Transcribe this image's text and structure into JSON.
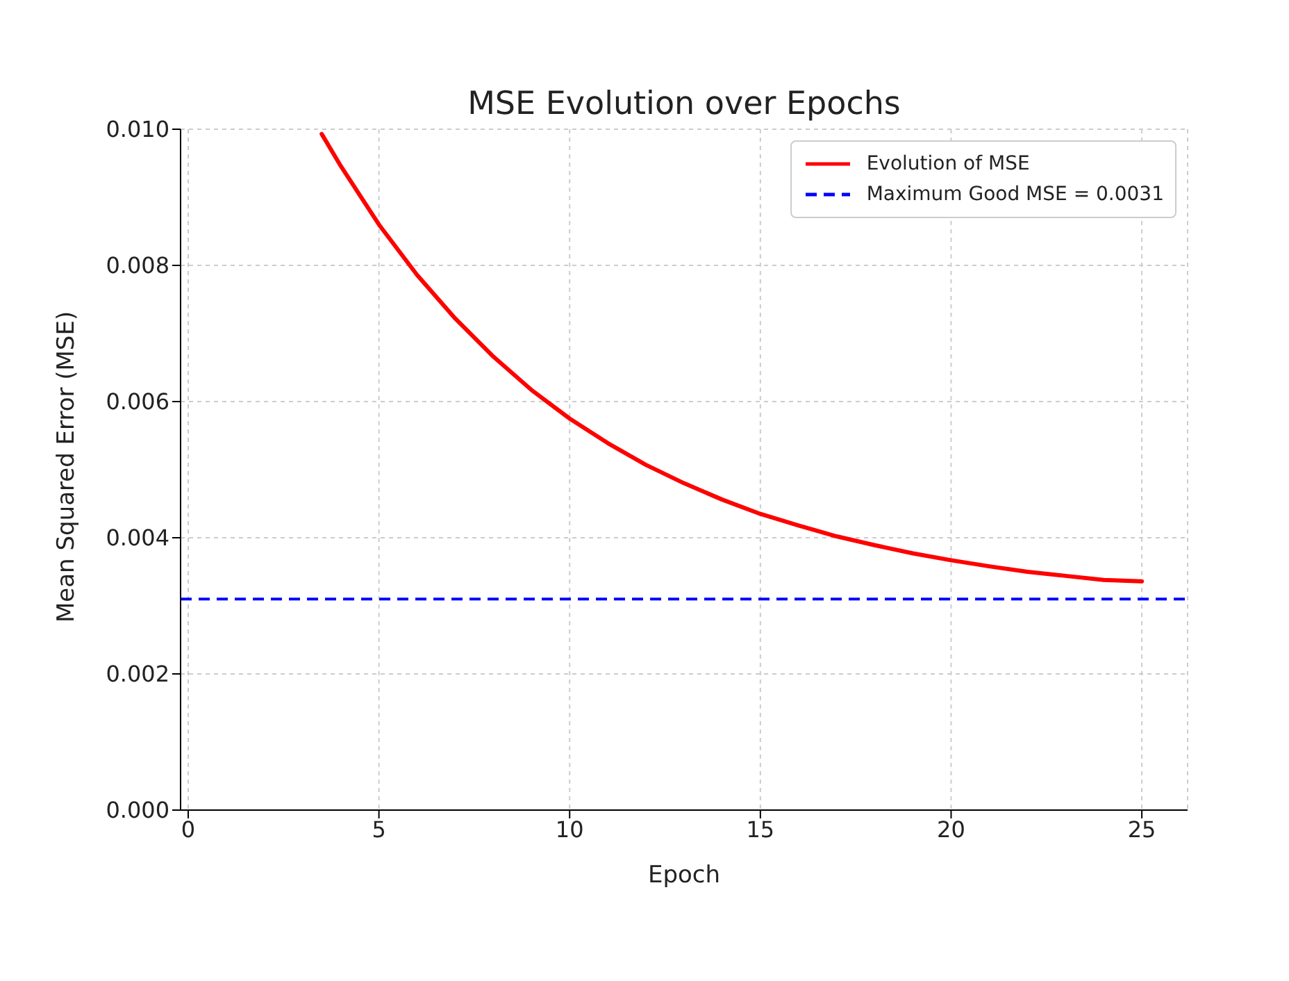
{
  "chart_data": {
    "type": "line",
    "title": "MSE Evolution over Epochs",
    "xlabel": "Epoch",
    "ylabel": "Mean Squared Error (MSE)",
    "x": [
      3.5,
      4,
      5,
      6,
      7,
      8,
      9,
      10,
      11,
      12,
      13,
      14,
      15,
      16,
      17,
      18,
      19,
      20,
      21,
      22,
      23,
      24,
      25
    ],
    "series": [
      {
        "name": "Evolution of MSE",
        "color": "#ff0000",
        "values": [
          0.00993,
          0.00946,
          0.0086,
          0.00786,
          0.00722,
          0.00666,
          0.00617,
          0.00575,
          0.00539,
          0.00507,
          0.0048,
          0.00456,
          0.00435,
          0.00418,
          0.00402,
          0.00389,
          0.00377,
          0.00367,
          0.00358,
          0.0035,
          0.00344,
          0.00338,
          0.00336
        ]
      }
    ],
    "ref_lines": [
      {
        "axis": "y",
        "value": 0.0031,
        "label": "Maximum Good MSE = 0.0031",
        "color": "#0000ff",
        "line_style": "dashed"
      }
    ],
    "xlim": [
      -0.2,
      26.2
    ],
    "xticks": [
      0,
      5,
      10,
      15,
      20,
      25
    ],
    "ylim": [
      0,
      0.01
    ],
    "yticks": [
      {
        "value": 0,
        "label": "0.000"
      },
      {
        "value": 0.002,
        "label": "0.002"
      },
      {
        "value": 0.004,
        "label": "0.004"
      },
      {
        "value": 0.006,
        "label": "0.006"
      },
      {
        "value": 0.008,
        "label": "0.008"
      },
      {
        "value": 0.01,
        "label": "0.010"
      }
    ],
    "grid": true,
    "legend": "top right",
    "marker": "none",
    "line_style": "solid"
  }
}
